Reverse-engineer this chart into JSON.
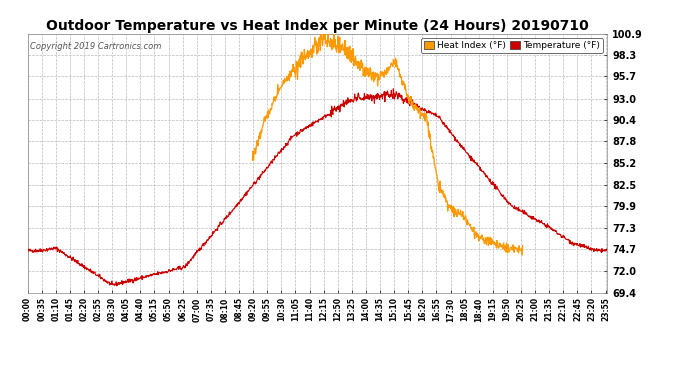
{
  "title": "Outdoor Temperature vs Heat Index per Minute (24 Hours) 20190710",
  "copyright": "Copyright 2019 Cartronics.com",
  "ylabel_ticks": [
    69.4,
    72.0,
    74.7,
    77.3,
    79.9,
    82.5,
    85.2,
    87.8,
    90.4,
    93.0,
    95.7,
    98.3,
    100.9
  ],
  "ylim": [
    69.4,
    100.9
  ],
  "temp_color": "#cc0000",
  "heat_color": "#ff9900",
  "bg_color": "#ffffff",
  "grid_color": "#bbbbbb",
  "title_fontsize": 10,
  "legend_heat_label": "Heat Index (°F)",
  "legend_temp_label": "Temperature (°F)",
  "xtick_step": 35,
  "total_minutes": 1440
}
